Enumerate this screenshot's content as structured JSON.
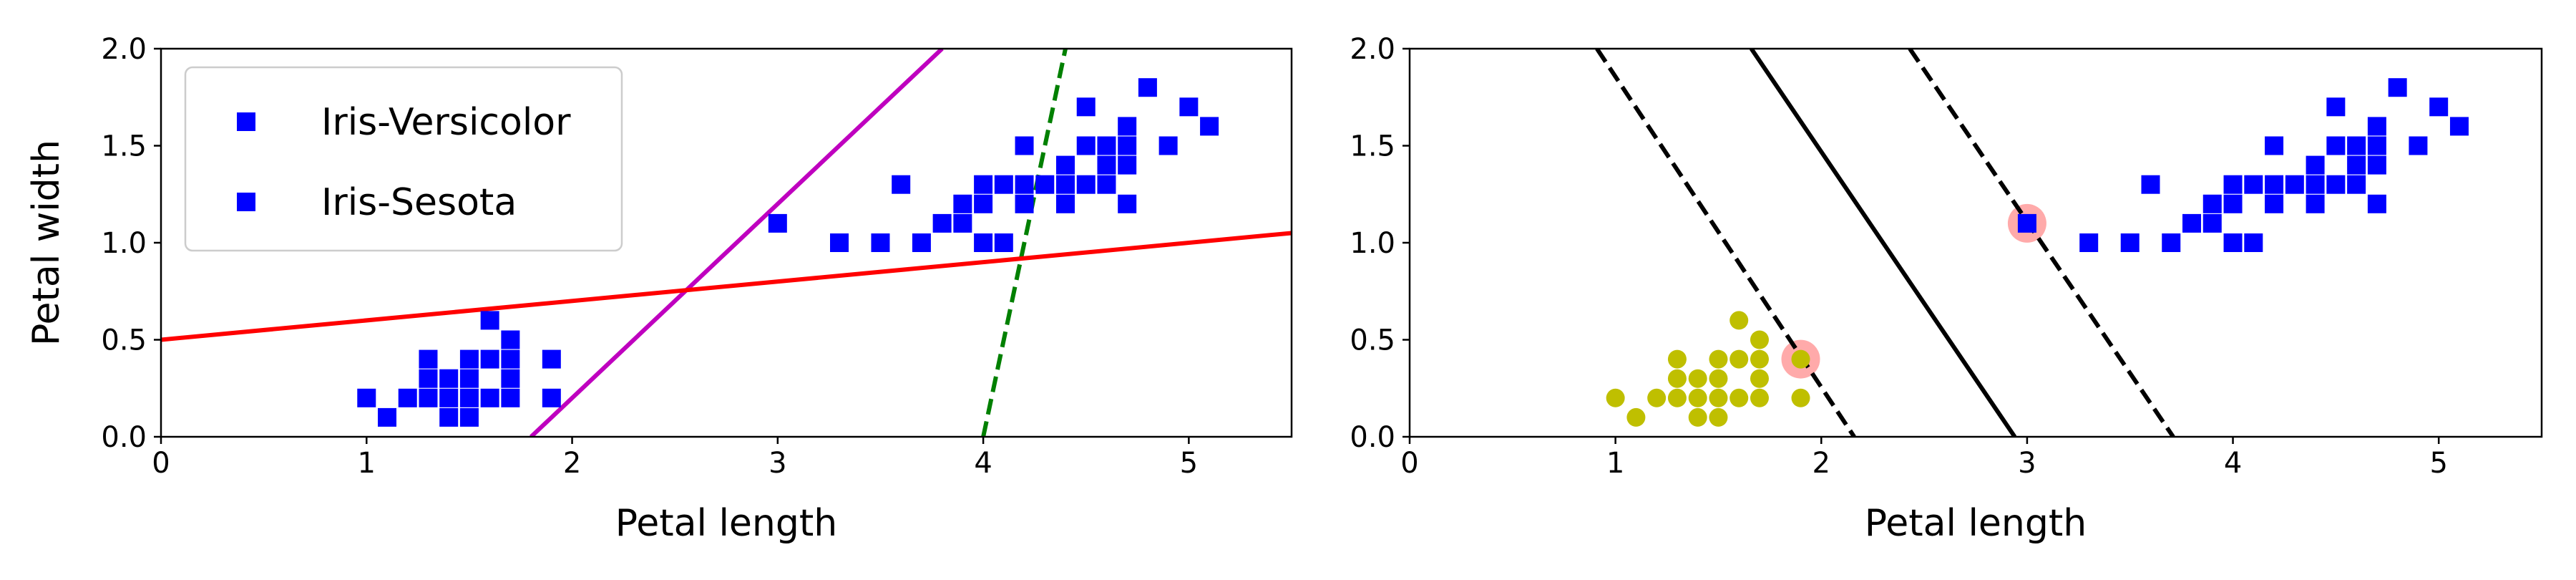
{
  "chart_data": [
    {
      "type": "scatter",
      "xlabel": "Petal length",
      "ylabel": "Petal width",
      "xlim": [
        0,
        5.5
      ],
      "ylim": [
        0,
        2.0
      ],
      "xticks": [
        "0",
        "1",
        "2",
        "3",
        "4",
        "5"
      ],
      "yticks": [
        "0.0",
        "0.5",
        "1.0",
        "1.5",
        "2.0"
      ],
      "grid": false,
      "legend": {
        "placement": "upper-left",
        "entries": [
          "Iris-Versicolor",
          "Iris-Sesota"
        ]
      },
      "series": [
        {
          "name": "Iris-Versicolor",
          "marker": "square",
          "color": "#0000ff",
          "points": [
            [
              1.0,
              0.2
            ],
            [
              1.1,
              0.1
            ],
            [
              1.2,
              0.2
            ],
            [
              1.3,
              0.2
            ],
            [
              1.3,
              0.3
            ],
            [
              1.3,
              0.4
            ],
            [
              1.4,
              0.1
            ],
            [
              1.4,
              0.2
            ],
            [
              1.4,
              0.3
            ],
            [
              1.5,
              0.1
            ],
            [
              1.5,
              0.2
            ],
            [
              1.5,
              0.3
            ],
            [
              1.5,
              0.4
            ],
            [
              1.6,
              0.2
            ],
            [
              1.6,
              0.4
            ],
            [
              1.6,
              0.6
            ],
            [
              1.7,
              0.2
            ],
            [
              1.7,
              0.3
            ],
            [
              1.7,
              0.4
            ],
            [
              1.7,
              0.5
            ],
            [
              1.9,
              0.2
            ],
            [
              1.9,
              0.4
            ]
          ]
        },
        {
          "name": "Iris-Sesota",
          "marker": "square",
          "color": "#0000ff",
          "points": [
            [
              3.0,
              1.1
            ],
            [
              3.3,
              1.0
            ],
            [
              3.5,
              1.0
            ],
            [
              3.6,
              1.3
            ],
            [
              3.7,
              1.0
            ],
            [
              3.8,
              1.1
            ],
            [
              3.9,
              1.1
            ],
            [
              3.9,
              1.2
            ],
            [
              4.0,
              1.0
            ],
            [
              4.0,
              1.2
            ],
            [
              4.0,
              1.3
            ],
            [
              4.1,
              1.0
            ],
            [
              4.1,
              1.3
            ],
            [
              4.2,
              1.2
            ],
            [
              4.2,
              1.3
            ],
            [
              4.2,
              1.5
            ],
            [
              4.3,
              1.3
            ],
            [
              4.4,
              1.2
            ],
            [
              4.4,
              1.3
            ],
            [
              4.4,
              1.4
            ],
            [
              4.5,
              1.3
            ],
            [
              4.5,
              1.5
            ],
            [
              4.5,
              1.7
            ],
            [
              4.6,
              1.3
            ],
            [
              4.6,
              1.4
            ],
            [
              4.6,
              1.5
            ],
            [
              4.7,
              1.2
            ],
            [
              4.7,
              1.4
            ],
            [
              4.7,
              1.5
            ],
            [
              4.7,
              1.6
            ],
            [
              4.8,
              1.8
            ],
            [
              4.9,
              1.5
            ],
            [
              5.0,
              1.7
            ],
            [
              5.1,
              1.6
            ]
          ]
        }
      ],
      "lines": [
        {
          "color": "#008000",
          "style": "dashed",
          "points": [
            [
              4.0,
              0.0
            ],
            [
              4.4,
              2.0
            ]
          ]
        },
        {
          "color": "#bf00bf",
          "style": "solid",
          "points": [
            [
              1.8,
              0.0
            ],
            [
              3.8,
              2.0
            ]
          ]
        },
        {
          "color": "#ff0000",
          "style": "solid",
          "points": [
            [
              0.0,
              0.5
            ],
            [
              5.5,
              1.05
            ]
          ]
        }
      ]
    },
    {
      "type": "scatter",
      "xlabel": "Petal length",
      "xlim": [
        0,
        5.5
      ],
      "ylim": [
        0,
        2.0
      ],
      "xticks": [
        "0",
        "1",
        "2",
        "3",
        "4",
        "5"
      ],
      "yticks": [
        "0.0",
        "0.5",
        "1.0",
        "1.5",
        "2.0"
      ],
      "grid": false,
      "series": [
        {
          "marker": "circle",
          "color": "#bfbf00",
          "points": [
            [
              1.0,
              0.2
            ],
            [
              1.1,
              0.1
            ],
            [
              1.2,
              0.2
            ],
            [
              1.3,
              0.2
            ],
            [
              1.3,
              0.3
            ],
            [
              1.3,
              0.4
            ],
            [
              1.4,
              0.1
            ],
            [
              1.4,
              0.2
            ],
            [
              1.4,
              0.3
            ],
            [
              1.5,
              0.1
            ],
            [
              1.5,
              0.2
            ],
            [
              1.5,
              0.3
            ],
            [
              1.5,
              0.4
            ],
            [
              1.6,
              0.2
            ],
            [
              1.6,
              0.4
            ],
            [
              1.6,
              0.6
            ],
            [
              1.7,
              0.2
            ],
            [
              1.7,
              0.3
            ],
            [
              1.7,
              0.4
            ],
            [
              1.7,
              0.5
            ],
            [
              1.9,
              0.2
            ],
            [
              1.9,
              0.4
            ]
          ]
        },
        {
          "marker": "square",
          "color": "#0000ff",
          "points": [
            [
              3.0,
              1.1
            ],
            [
              3.3,
              1.0
            ],
            [
              3.5,
              1.0
            ],
            [
              3.6,
              1.3
            ],
            [
              3.7,
              1.0
            ],
            [
              3.8,
              1.1
            ],
            [
              3.9,
              1.1
            ],
            [
              3.9,
              1.2
            ],
            [
              4.0,
              1.0
            ],
            [
              4.0,
              1.2
            ],
            [
              4.0,
              1.3
            ],
            [
              4.1,
              1.0
            ],
            [
              4.1,
              1.3
            ],
            [
              4.2,
              1.2
            ],
            [
              4.2,
              1.3
            ],
            [
              4.2,
              1.5
            ],
            [
              4.3,
              1.3
            ],
            [
              4.4,
              1.2
            ],
            [
              4.4,
              1.3
            ],
            [
              4.4,
              1.4
            ],
            [
              4.5,
              1.3
            ],
            [
              4.5,
              1.5
            ],
            [
              4.5,
              1.7
            ],
            [
              4.6,
              1.3
            ],
            [
              4.6,
              1.4
            ],
            [
              4.6,
              1.5
            ],
            [
              4.7,
              1.2
            ],
            [
              4.7,
              1.4
            ],
            [
              4.7,
              1.5
            ],
            [
              4.7,
              1.6
            ],
            [
              4.8,
              1.8
            ],
            [
              4.9,
              1.5
            ],
            [
              5.0,
              1.7
            ],
            [
              5.1,
              1.6
            ]
          ]
        }
      ],
      "support_vectors": {
        "color": "#ffaaaa",
        "points": [
          [
            1.9,
            0.4
          ],
          [
            3.0,
            1.1
          ]
        ]
      },
      "lines": [
        {
          "color": "#000000",
          "style": "solid",
          "points": [
            [
              1.66,
              2.0
            ],
            [
              2.94,
              0.0
            ]
          ]
        },
        {
          "color": "#000000",
          "style": "dashed",
          "points": [
            [
              0.91,
              2.0
            ],
            [
              2.16,
              0.0
            ]
          ]
        },
        {
          "color": "#000000",
          "style": "dashed",
          "points": [
            [
              2.43,
              2.0
            ],
            [
              3.71,
              0.0
            ]
          ]
        }
      ]
    }
  ]
}
